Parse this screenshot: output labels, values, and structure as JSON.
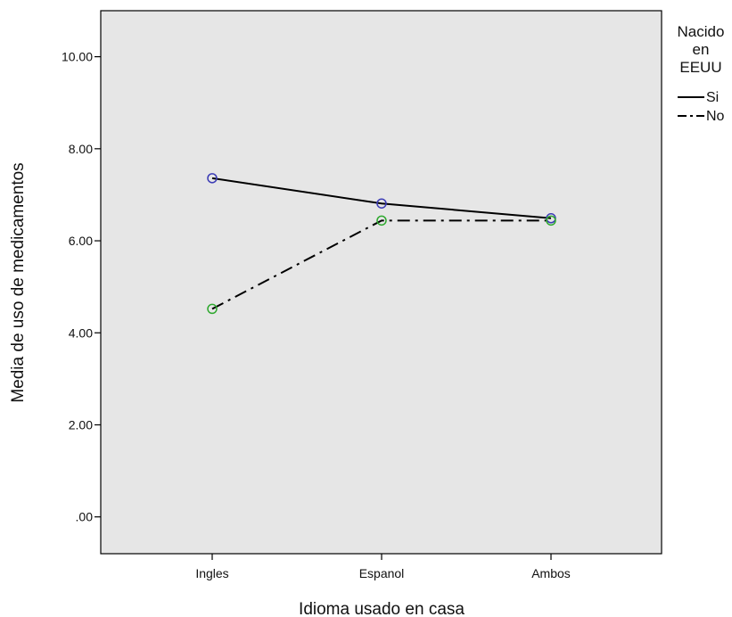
{
  "chart_data": {
    "type": "line",
    "xlabel": "Idioma usado en casa",
    "ylabel": "Media de uso de medicamentos",
    "categories": [
      "Ingles",
      "Espanol",
      "Ambos"
    ],
    "ylim": [
      -0.8,
      11.0
    ],
    "yticks": [
      0,
      2,
      4,
      6,
      8,
      10
    ],
    "ytick_labels": [
      ".00",
      "2.00",
      "4.00",
      "6.00",
      "8.00",
      "10.00"
    ],
    "grid": false,
    "plot_background": "#e6e6e6",
    "legend": {
      "title_lines": [
        "Nacido",
        "en",
        "EEUU"
      ],
      "placement": "right"
    },
    "series": [
      {
        "name": "Si",
        "values": [
          7.36,
          6.81,
          6.49
        ],
        "line_style": "solid",
        "line_color": "#000000",
        "marker_color": "#3b3bb5"
      },
      {
        "name": "No",
        "values": [
          4.52,
          6.44,
          6.44
        ],
        "line_style": "dash-dot",
        "line_color": "#000000",
        "marker_color": "#2ea82e"
      }
    ]
  }
}
